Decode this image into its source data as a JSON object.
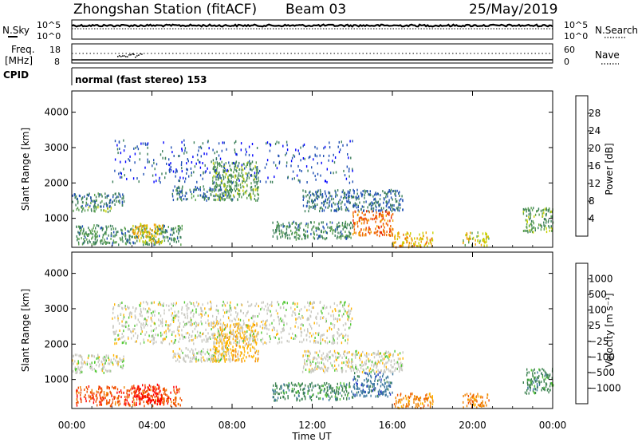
{
  "header": {
    "station": "Zhongshan Station (fitACF)",
    "beam": "Beam 03",
    "date": "25/May/2019"
  },
  "sky_panel": {
    "left_label": "N.Sky",
    "right_label": "N.Search",
    "left_ticks": [
      "10^5",
      "10^0"
    ],
    "right_ticks": [
      "10^5",
      "10^0"
    ]
  },
  "freq_panel": {
    "left_label_1": "Freq.",
    "left_label_2": "[MHz]",
    "right_label": "Nave",
    "left_ticks": [
      "18",
      "8"
    ],
    "right_ticks": [
      "60",
      "0"
    ]
  },
  "cpid": {
    "label": "CPID",
    "value": "normal (fast stereo) 153"
  },
  "colors": {
    "power": [
      "#0000ff",
      "#1f4fb4",
      "#3c7f5a",
      "#5aa050",
      "#c8d200",
      "#f0a000",
      "#f06400",
      "#e61e00",
      "#ff0000"
    ],
    "velocity": [
      "#ff0000",
      "#f05000",
      "#f08200",
      "#ffb400",
      "#c8c8c0",
      "#50c832",
      "#3c8250",
      "#3c78a0",
      "#1e32c8"
    ]
  },
  "chart_data": [
    {
      "type": "heatmap",
      "name": "power",
      "ylabel": "Slant Range [km]",
      "xlabel": "",
      "x_ticks": [
        "00:00",
        "04:00",
        "08:00",
        "12:00",
        "16:00",
        "20:00",
        "00:00"
      ],
      "x_range_hours": [
        0,
        24
      ],
      "y_ticks": [
        1000,
        2000,
        3000,
        4000
      ],
      "ylim": [
        180,
        4600
      ],
      "colorbar": {
        "label": "Power [dB]",
        "ticks": [
          4,
          8,
          12,
          16,
          20,
          24,
          28
        ],
        "range": [
          0,
          32
        ]
      },
      "echo_regions": [
        {
          "t": [
            0.0,
            2.6
          ],
          "r": [
            1320,
            1700
          ],
          "v": 9
        },
        {
          "t": [
            0.0,
            2.0
          ],
          "r": [
            1180,
            1320
          ],
          "v": 14
        },
        {
          "t": [
            0.2,
            5.5
          ],
          "r": [
            250,
            800
          ],
          "v": 11
        },
        {
          "t": [
            3.0,
            4.5
          ],
          "r": [
            300,
            850
          ],
          "v": 20
        },
        {
          "t": [
            5.0,
            8.0
          ],
          "r": [
            1500,
            1900
          ],
          "v": 9
        },
        {
          "t": [
            7.0,
            9.3
          ],
          "r": [
            1500,
            2600
          ],
          "v": 13
        },
        {
          "t": [
            10.0,
            14.0
          ],
          "r": [
            400,
            900
          ],
          "v": 11
        },
        {
          "t": [
            11.5,
            16.5
          ],
          "r": [
            1200,
            1800
          ],
          "v": 8
        },
        {
          "t": [
            14.0,
            16.0
          ],
          "r": [
            500,
            1200
          ],
          "v": 26
        },
        {
          "t": [
            16.0,
            18.0
          ],
          "r": [
            180,
            600
          ],
          "v": 21
        },
        {
          "t": [
            19.5,
            20.8
          ],
          "r": [
            200,
            600
          ],
          "v": 18
        },
        {
          "t": [
            22.5,
            24.0
          ],
          "r": [
            600,
            1300
          ],
          "v": 13
        },
        {
          "t": [
            2.0,
            14.0
          ],
          "r": [
            2000,
            3200
          ],
          "v": 6
        }
      ]
    },
    {
      "type": "heatmap",
      "name": "velocity",
      "ylabel": "Slant Range [km]",
      "xlabel": "Time UT",
      "x_ticks": [
        "00:00",
        "04:00",
        "08:00",
        "12:00",
        "16:00",
        "20:00",
        "00:00"
      ],
      "x_range_hours": [
        0,
        24
      ],
      "y_ticks": [
        1000,
        2000,
        3000,
        4000
      ],
      "ylim": [
        180,
        4600
      ],
      "colorbar": {
        "label": "Velocity [m s⁻¹]",
        "ticks": [
          "1000",
          "500",
          "100",
          "25",
          "−25",
          "−100",
          "−500",
          "−1000"
        ]
      },
      "echo_regions": [
        {
          "t": [
            0.0,
            2.6
          ],
          "r": [
            1320,
            1700
          ],
          "v": 4
        },
        {
          "t": [
            0.0,
            2.0
          ],
          "r": [
            1180,
            1320
          ],
          "v": 4
        },
        {
          "t": [
            0.2,
            5.5
          ],
          "r": [
            250,
            800
          ],
          "v": 1
        },
        {
          "t": [
            3.0,
            4.5
          ],
          "r": [
            300,
            850
          ],
          "v": 0
        },
        {
          "t": [
            5.0,
            8.0
          ],
          "r": [
            1500,
            1900
          ],
          "v": 4
        },
        {
          "t": [
            7.0,
            9.3
          ],
          "r": [
            1500,
            2600
          ],
          "v": 3
        },
        {
          "t": [
            10.0,
            14.0
          ],
          "r": [
            400,
            900
          ],
          "v": 6
        },
        {
          "t": [
            11.5,
            16.5
          ],
          "r": [
            1200,
            1800
          ],
          "v": 4
        },
        {
          "t": [
            14.0,
            16.0
          ],
          "r": [
            500,
            1200
          ],
          "v": 7
        },
        {
          "t": [
            16.0,
            18.0
          ],
          "r": [
            180,
            600
          ],
          "v": 2
        },
        {
          "t": [
            19.5,
            20.8
          ],
          "r": [
            200,
            600
          ],
          "v": 2
        },
        {
          "t": [
            22.5,
            24.0
          ],
          "r": [
            600,
            1300
          ],
          "v": 6
        },
        {
          "t": [
            2.0,
            14.0
          ],
          "r": [
            2000,
            3200
          ],
          "v": 4
        }
      ]
    }
  ]
}
